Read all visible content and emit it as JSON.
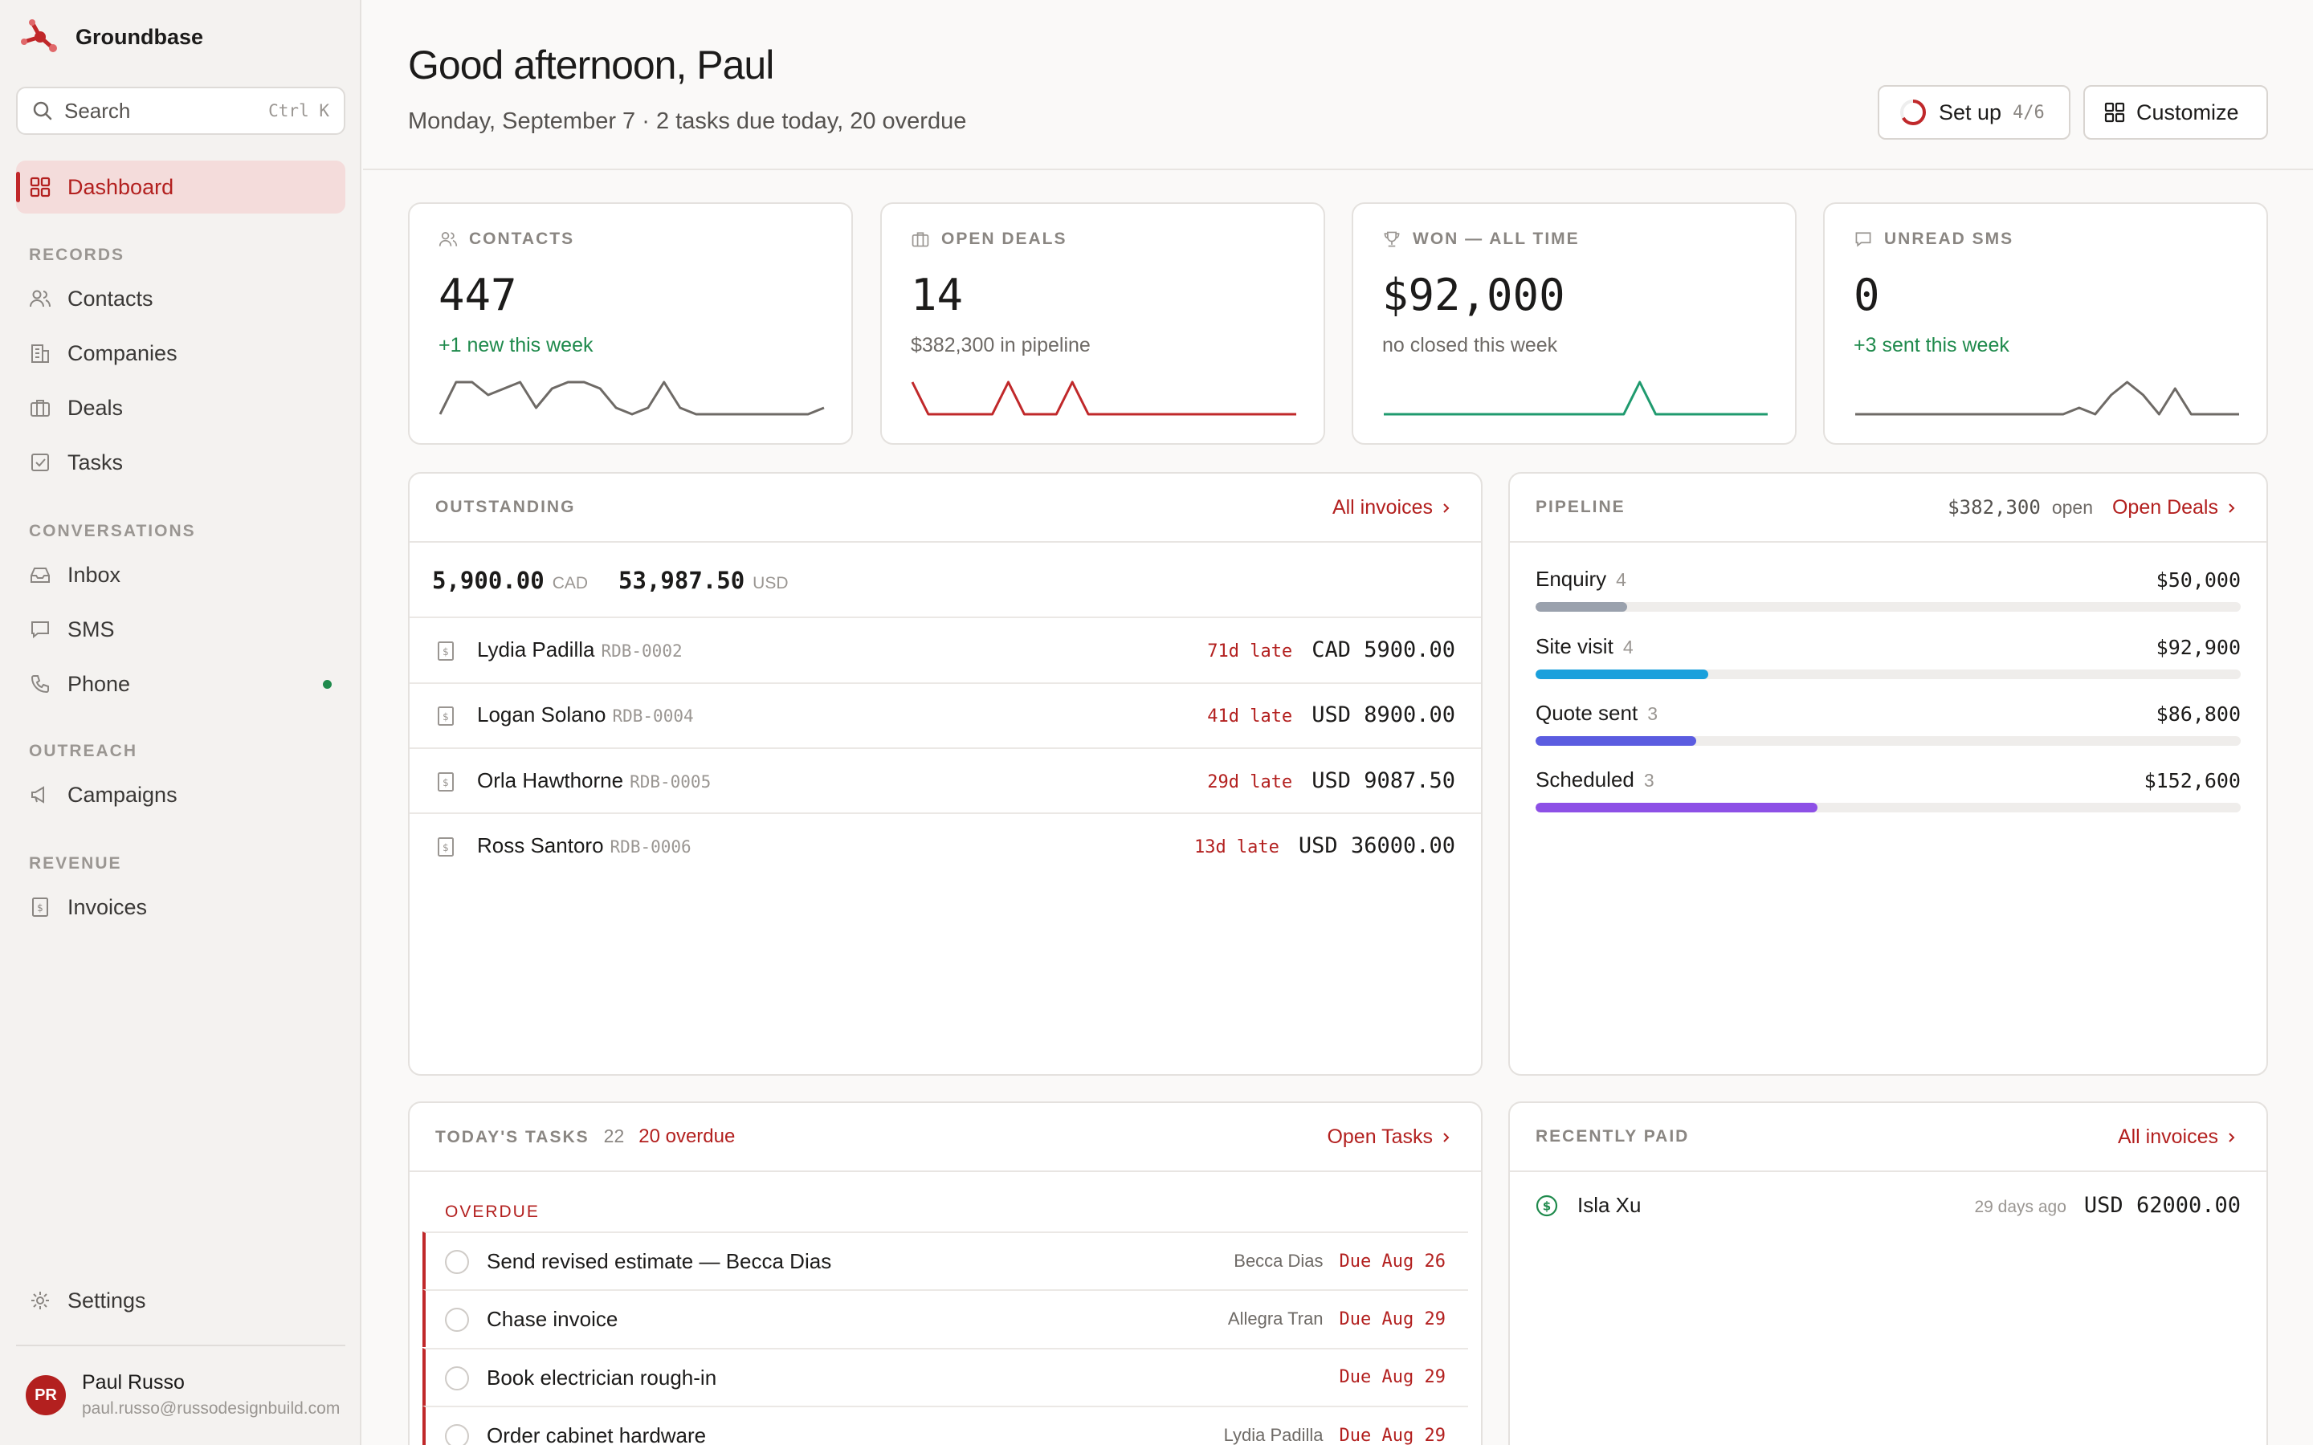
{
  "app": {
    "name": "Groundbase"
  },
  "sidebar": {
    "search": {
      "label": "Search",
      "shortcut": "Ctrl K"
    },
    "active": {
      "label": "Dashboard",
      "icon": "grid-icon"
    },
    "sections": {
      "records": "RECORDS",
      "conversations": "CONVERSATIONS",
      "outreach": "OUTREACH",
      "revenue": "REVENUE"
    },
    "items": {
      "contacts": "Contacts",
      "companies": "Companies",
      "deals": "Deals",
      "tasks": "Tasks",
      "inbox": "Inbox",
      "sms": "SMS",
      "phone": "Phone",
      "campaigns": "Campaigns",
      "invoices": "Invoices",
      "settings": "Settings"
    },
    "user": {
      "initials": "PR",
      "name": "Paul Russo",
      "email": "paul.russo@russodesignbuild.com"
    }
  },
  "header": {
    "greeting": "Good afternoon, Paul",
    "subline": "Monday, September 7 · 2 tasks due today, 20 overdue",
    "setup": {
      "label": "Set up",
      "count": "4/6",
      "progress": 0.667
    },
    "customize": {
      "label": "Customize"
    }
  },
  "stats": [
    {
      "title": "CONTACTS",
      "icon": "users-icon",
      "value": "447",
      "sub": "+1 new this week",
      "sub_color": "green",
      "spark_color": "#6e6a66",
      "spark": [
        0,
        5,
        5,
        3,
        4,
        5,
        1,
        4,
        5,
        5,
        4,
        1,
        0,
        1,
        5,
        1,
        0,
        0,
        0,
        0,
        0,
        0,
        0,
        0,
        1
      ]
    },
    {
      "title": "OPEN DEALS",
      "icon": "building-icon",
      "value": "14",
      "sub": "$382,300 in pipeline",
      "sub_color": "grey",
      "spark_color": "#c0282a",
      "spark": [
        5,
        0,
        0,
        0,
        0,
        0,
        5,
        0,
        0,
        0,
        5,
        0,
        0,
        0,
        0,
        0,
        0,
        0,
        0,
        0,
        0,
        0,
        0,
        0,
        0
      ]
    },
    {
      "title": "WON — ALL TIME",
      "icon": "trophy-icon",
      "value": "$92,000",
      "sub": "no closed this week",
      "sub_color": "grey",
      "spark_color": "#1f9a6e",
      "spark": [
        0,
        0,
        0,
        0,
        0,
        0,
        0,
        0,
        0,
        0,
        0,
        0,
        0,
        0,
        0,
        0,
        5,
        0,
        0,
        0,
        0,
        0,
        0,
        0,
        0
      ]
    },
    {
      "title": "UNREAD SMS",
      "icon": "chat-icon",
      "value": "0",
      "sub": "+3 sent this week",
      "sub_color": "green",
      "spark_color": "#6e6a66",
      "spark": [
        0,
        0,
        0,
        0,
        0,
        0,
        0,
        0,
        0,
        0,
        0,
        0,
        0,
        0,
        1,
        0,
        3,
        5,
        3,
        0,
        4,
        0,
        0,
        0,
        0
      ]
    }
  ],
  "outstanding": {
    "title": "OUTSTANDING",
    "link": "All invoices",
    "totals": [
      {
        "amount": "5,900.00",
        "currency": "CAD"
      },
      {
        "amount": "53,987.50",
        "currency": "USD"
      }
    ],
    "rows": [
      {
        "name": "Lydia Padilla",
        "id": "RDB-0002",
        "late": "71d late",
        "amount": "CAD 5900.00"
      },
      {
        "name": "Logan Solano",
        "id": "RDB-0004",
        "late": "41d late",
        "amount": "USD 8900.00"
      },
      {
        "name": "Orla Hawthorne",
        "id": "RDB-0005",
        "late": "29d late",
        "amount": "USD 9087.50"
      },
      {
        "name": "Ross Santoro",
        "id": "RDB-0006",
        "late": "13d late",
        "amount": "USD 36000.00"
      }
    ]
  },
  "pipeline": {
    "title": "PIPELINE",
    "open_amount": "$382,300",
    "open_label": "open",
    "link": "Open Deals",
    "stages": [
      {
        "name": "Enquiry",
        "count": "4",
        "value": "$50,000",
        "fill": 0.13,
        "color": "#9aa1ad"
      },
      {
        "name": "Site visit",
        "count": "4",
        "value": "$92,900",
        "fill": 0.245,
        "color": "#1aa0dc"
      },
      {
        "name": "Quote sent",
        "count": "3",
        "value": "$86,800",
        "fill": 0.228,
        "color": "#5b5ce0"
      },
      {
        "name": "Scheduled",
        "count": "3",
        "value": "$152,600",
        "fill": 0.4,
        "color": "#8d50e6"
      }
    ]
  },
  "tasks": {
    "title": "TODAY'S TASKS",
    "count": "22",
    "overdue": "20 overdue",
    "link": "Open Tasks",
    "group": "OVERDUE",
    "rows": [
      {
        "title": "Send revised estimate — Becca Dias",
        "assignee": "Becca Dias",
        "due": "Due Aug 26"
      },
      {
        "title": "Chase invoice",
        "assignee": "Allegra Tran",
        "due": "Due Aug 29"
      },
      {
        "title": "Book electrician rough-in",
        "assignee": "",
        "due": "Due Aug 29"
      },
      {
        "title": "Order cabinet hardware",
        "assignee": "Lydia Padilla",
        "due": "Due Aug 29"
      }
    ]
  },
  "recently_paid": {
    "title": "RECENTLY PAID",
    "link": "All invoices",
    "rows": [
      {
        "name": "Isla Xu",
        "ago": "29 days ago",
        "amount": "USD 62000.00"
      }
    ]
  }
}
